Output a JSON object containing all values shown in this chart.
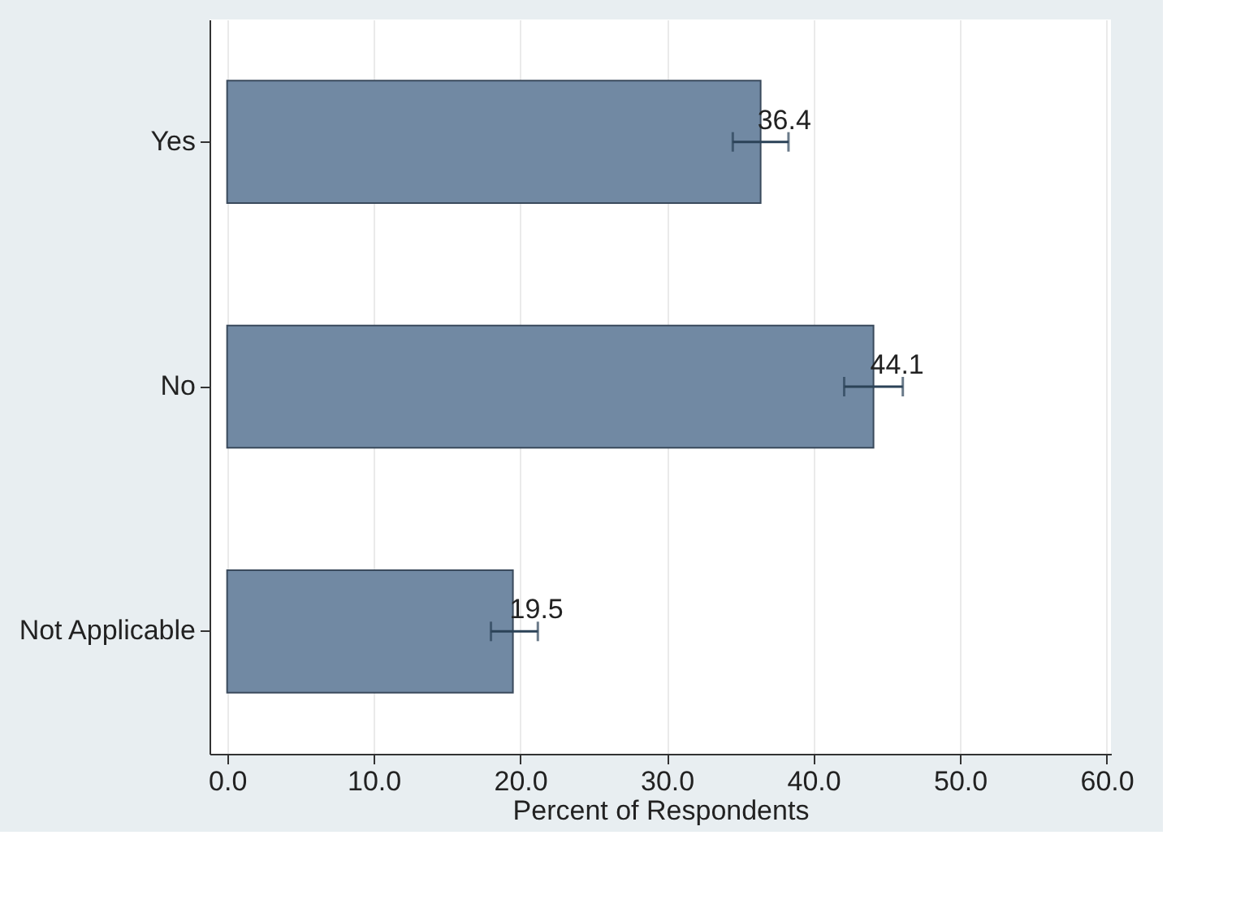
{
  "chart_data": {
    "type": "bar",
    "orientation": "horizontal",
    "categories": [
      "Yes",
      "No",
      "Not Applicable"
    ],
    "values": [
      36.4,
      44.1,
      19.5
    ],
    "errors": [
      [
        34.5,
        38.3
      ],
      [
        42.1,
        46.1
      ],
      [
        18.0,
        21.2
      ]
    ],
    "color": "#7189a3",
    "xlabel": "Percent of Respondents",
    "xlim": [
      -1.2,
      60.3
    ],
    "xticks": [
      {
        "value": 0,
        "label": "0.0"
      },
      {
        "value": 10,
        "label": "10.0"
      },
      {
        "value": 20,
        "label": "20.0"
      },
      {
        "value": 30,
        "label": "30.0"
      },
      {
        "value": 40,
        "label": "40.0"
      },
      {
        "value": 50,
        "label": "50.0"
      },
      {
        "value": 60,
        "label": "60.0"
      }
    ],
    "grid": "x",
    "data_labels": true
  }
}
